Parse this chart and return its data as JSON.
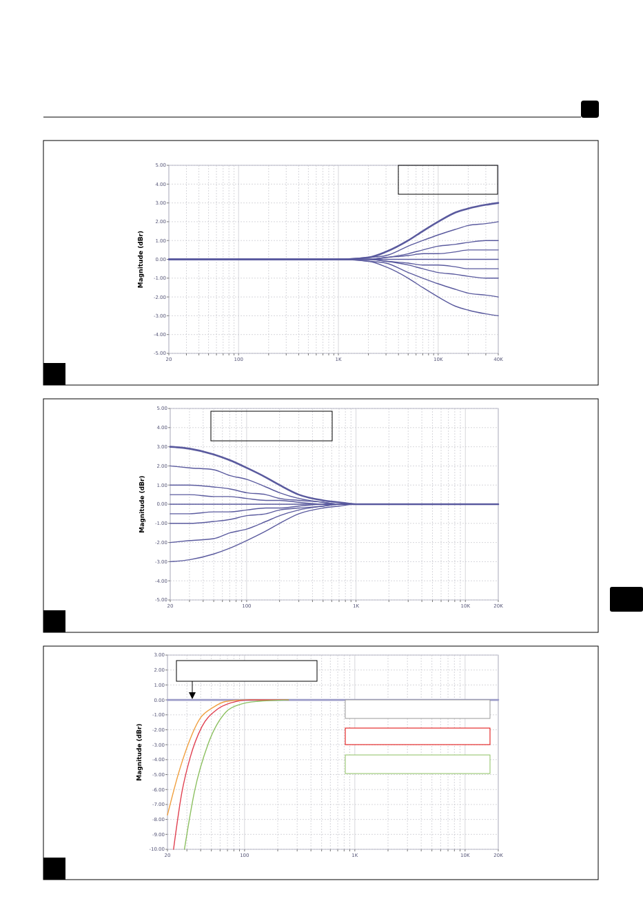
{
  "chart_data": [
    {
      "type": "line",
      "ylabel": "Magnitude (dBr)",
      "log": "x",
      "grid": true,
      "xlim": [
        20,
        40000
      ],
      "ylim": [
        -5,
        5
      ],
      "xticks": [
        {
          "value": 20,
          "label": "20"
        },
        {
          "value": 30,
          "label": null
        },
        {
          "value": 40,
          "label": null
        },
        {
          "value": 50,
          "label": null
        },
        {
          "value": 60,
          "label": null
        },
        {
          "value": 70,
          "label": null
        },
        {
          "value": 80,
          "label": null
        },
        {
          "value": 90,
          "label": null
        },
        {
          "value": 100,
          "label": "100"
        },
        {
          "value": 200,
          "label": null
        },
        {
          "value": 300,
          "label": null
        },
        {
          "value": 400,
          "label": null
        },
        {
          "value": 500,
          "label": null
        },
        {
          "value": 600,
          "label": null
        },
        {
          "value": 700,
          "label": null
        },
        {
          "value": 800,
          "label": null
        },
        {
          "value": 900,
          "label": null
        },
        {
          "value": 1000,
          "label": "1K"
        },
        {
          "value": 2000,
          "label": null
        },
        {
          "value": 3000,
          "label": null
        },
        {
          "value": 4000,
          "label": null
        },
        {
          "value": 5000,
          "label": null
        },
        {
          "value": 6000,
          "label": null
        },
        {
          "value": 7000,
          "label": null
        },
        {
          "value": 8000,
          "label": null
        },
        {
          "value": 9000,
          "label": null
        },
        {
          "value": 10000,
          "label": "10K"
        },
        {
          "value": 20000,
          "label": null
        },
        {
          "value": 30000,
          "label": null
        },
        {
          "value": 40000,
          "label": "40K"
        }
      ],
      "yticks": [
        {
          "value": 5,
          "label": "5.00"
        },
        {
          "value": 4,
          "label": "4.00"
        },
        {
          "value": 3,
          "label": "3.00"
        },
        {
          "value": 2,
          "label": "2.00"
        },
        {
          "value": 1,
          "label": "1.00"
        },
        {
          "value": 0,
          "label": "0.00"
        },
        {
          "value": -1,
          "label": "-1.00"
        },
        {
          "value": -2,
          "label": "-2.00"
        },
        {
          "value": -3,
          "label": "-3.00"
        },
        {
          "value": -4,
          "label": "-4.00"
        },
        {
          "value": -5,
          "label": "-5.00"
        }
      ],
      "x": [
        20,
        500,
        1000,
        2000,
        3000,
        5000,
        7000,
        10000,
        15000,
        20000,
        30000,
        40000
      ],
      "series": [
        {
          "color": "#5a5a9e",
          "values": [
            0,
            0,
            0,
            0.1,
            0.4,
            1.0,
            1.5,
            2.0,
            2.5,
            2.7,
            2.9,
            3
          ]
        },
        {
          "color": "#5a5a9e",
          "values": [
            0,
            0,
            0,
            0.1,
            0.2,
            0.7,
            1.0,
            1.3,
            1.6,
            1.8,
            1.9,
            2
          ]
        },
        {
          "color": "#5a5a9e",
          "values": [
            0,
            0,
            0,
            0,
            0.1,
            0.3,
            0.5,
            0.7,
            0.8,
            0.9,
            1.0,
            1
          ]
        },
        {
          "color": "#5a5a9e",
          "values": [
            0,
            0,
            0,
            0,
            0.1,
            0.2,
            0.3,
            0.3,
            0.4,
            0.5,
            0.5,
            0.5
          ]
        },
        {
          "color": "#5a5a9e",
          "values": [
            0,
            0,
            0,
            0,
            0,
            0,
            0,
            0,
            0,
            0,
            0,
            0
          ]
        },
        {
          "color": "#5a5a9e",
          "values": [
            0,
            0,
            0,
            0,
            -0.1,
            -0.2,
            -0.3,
            -0.3,
            -0.4,
            -0.5,
            -0.5,
            -0.5
          ]
        },
        {
          "color": "#5a5a9e",
          "values": [
            0,
            0,
            0,
            0,
            -0.1,
            -0.3,
            -0.5,
            -0.7,
            -0.8,
            -0.9,
            -1.0,
            -1
          ]
        },
        {
          "color": "#5a5a9e",
          "values": [
            0,
            0,
            0,
            -0.1,
            -0.2,
            -0.7,
            -1.0,
            -1.3,
            -1.6,
            -1.8,
            -1.9,
            -2
          ]
        },
        {
          "color": "#5a5a9e",
          "values": [
            0,
            0,
            0,
            -0.1,
            -0.4,
            -1.0,
            -1.5,
            -2.0,
            -2.5,
            -2.7,
            -2.9,
            -3
          ]
        }
      ]
    },
    {
      "type": "line",
      "ylabel": "Magnitude (dBr)",
      "log": "x",
      "grid": true,
      "xlim": [
        20,
        20000
      ],
      "ylim": [
        -5,
        5
      ],
      "xticks": [
        {
          "value": 20,
          "label": "20"
        },
        {
          "value": 30,
          "label": null
        },
        {
          "value": 40,
          "label": null
        },
        {
          "value": 50,
          "label": null
        },
        {
          "value": 60,
          "label": null
        },
        {
          "value": 70,
          "label": null
        },
        {
          "value": 80,
          "label": null
        },
        {
          "value": 90,
          "label": null
        },
        {
          "value": 100,
          "label": "100"
        },
        {
          "value": 200,
          "label": null
        },
        {
          "value": 300,
          "label": null
        },
        {
          "value": 400,
          "label": null
        },
        {
          "value": 500,
          "label": null
        },
        {
          "value": 600,
          "label": null
        },
        {
          "value": 700,
          "label": null
        },
        {
          "value": 800,
          "label": null
        },
        {
          "value": 900,
          "label": null
        },
        {
          "value": 1000,
          "label": "1K"
        },
        {
          "value": 2000,
          "label": null
        },
        {
          "value": 3000,
          "label": null
        },
        {
          "value": 4000,
          "label": null
        },
        {
          "value": 5000,
          "label": null
        },
        {
          "value": 6000,
          "label": null
        },
        {
          "value": 7000,
          "label": null
        },
        {
          "value": 8000,
          "label": null
        },
        {
          "value": 9000,
          "label": null
        },
        {
          "value": 10000,
          "label": "10K"
        },
        {
          "value": 20000,
          "label": "20K"
        }
      ],
      "yticks": [
        {
          "value": 5,
          "label": "5.00"
        },
        {
          "value": 4,
          "label": "4.00"
        },
        {
          "value": 3,
          "label": "3.00"
        },
        {
          "value": 2,
          "label": "2.00"
        },
        {
          "value": 1,
          "label": "1.00"
        },
        {
          "value": 0,
          "label": "0.00"
        },
        {
          "value": -1,
          "label": "-1.00"
        },
        {
          "value": -2,
          "label": "-2.00"
        },
        {
          "value": -3,
          "label": "-3.00"
        },
        {
          "value": -4,
          "label": "-4.00"
        },
        {
          "value": -5,
          "label": "-5.00"
        }
      ],
      "x": [
        20,
        30,
        50,
        70,
        100,
        150,
        200,
        300,
        500,
        700,
        1000,
        20000
      ],
      "series": [
        {
          "color": "#5a5a9e",
          "values": [
            3,
            2.9,
            2.6,
            2.3,
            1.9,
            1.4,
            1.0,
            0.5,
            0.2,
            0.1,
            0,
            0
          ]
        },
        {
          "color": "#5a5a9e",
          "values": [
            2,
            1.9,
            1.8,
            1.5,
            1.3,
            0.9,
            0.6,
            0.3,
            0.1,
            0,
            0,
            0
          ]
        },
        {
          "color": "#5a5a9e",
          "values": [
            1,
            1.0,
            0.9,
            0.8,
            0.6,
            0.5,
            0.3,
            0.2,
            0.1,
            0,
            0,
            0
          ]
        },
        {
          "color": "#5a5a9e",
          "values": [
            0.5,
            0.5,
            0.4,
            0.4,
            0.3,
            0.2,
            0.2,
            0.1,
            0,
            0,
            0,
            0
          ]
        },
        {
          "color": "#5a5a9e",
          "values": [
            0,
            0,
            0,
            0,
            0,
            0,
            0,
            0,
            0,
            0,
            0,
            0
          ]
        },
        {
          "color": "#5a5a9e",
          "values": [
            -0.5,
            -0.5,
            -0.4,
            -0.4,
            -0.3,
            -0.2,
            -0.2,
            -0.1,
            0,
            0,
            0,
            0
          ]
        },
        {
          "color": "#5a5a9e",
          "values": [
            -1,
            -1.0,
            -0.9,
            -0.8,
            -0.6,
            -0.5,
            -0.3,
            -0.2,
            -0.1,
            0,
            0,
            0
          ]
        },
        {
          "color": "#5a5a9e",
          "values": [
            -2,
            -1.9,
            -1.8,
            -1.5,
            -1.3,
            -0.9,
            -0.6,
            -0.3,
            -0.1,
            0,
            0,
            0
          ]
        },
        {
          "color": "#5a5a9e",
          "values": [
            -3,
            -2.9,
            -2.6,
            -2.3,
            -1.9,
            -1.4,
            -1.0,
            -0.5,
            -0.2,
            -0.1,
            0,
            0
          ]
        }
      ]
    },
    {
      "type": "line",
      "ylabel": "Magnitude (dBr)",
      "log": "x",
      "grid": true,
      "xlim": [
        20,
        20000
      ],
      "ylim": [
        -10,
        3
      ],
      "xticks": [
        {
          "value": 20,
          "label": "20"
        },
        {
          "value": 30,
          "label": null
        },
        {
          "value": 40,
          "label": null
        },
        {
          "value": 50,
          "label": null
        },
        {
          "value": 60,
          "label": null
        },
        {
          "value": 70,
          "label": null
        },
        {
          "value": 80,
          "label": null
        },
        {
          "value": 90,
          "label": null
        },
        {
          "value": 100,
          "label": "100"
        },
        {
          "value": 200,
          "label": null
        },
        {
          "value": 300,
          "label": null
        },
        {
          "value": 400,
          "label": null
        },
        {
          "value": 500,
          "label": null
        },
        {
          "value": 600,
          "label": null
        },
        {
          "value": 700,
          "label": null
        },
        {
          "value": 800,
          "label": null
        },
        {
          "value": 900,
          "label": null
        },
        {
          "value": 1000,
          "label": "1K"
        },
        {
          "value": 2000,
          "label": null
        },
        {
          "value": 3000,
          "label": null
        },
        {
          "value": 4000,
          "label": null
        },
        {
          "value": 5000,
          "label": null
        },
        {
          "value": 6000,
          "label": null
        },
        {
          "value": 7000,
          "label": null
        },
        {
          "value": 8000,
          "label": null
        },
        {
          "value": 9000,
          "label": null
        },
        {
          "value": 10000,
          "label": "10K"
        },
        {
          "value": 20000,
          "label": "20K"
        }
      ],
      "yticks": [
        {
          "value": 3,
          "label": "3.00"
        },
        {
          "value": 2,
          "label": "2.00"
        },
        {
          "value": 1,
          "label": "1.00"
        },
        {
          "value": 0,
          "label": "0.00"
        },
        {
          "value": -1,
          "label": "-1.00"
        },
        {
          "value": -2,
          "label": "-2.00"
        },
        {
          "value": -3,
          "label": "-3.00"
        },
        {
          "value": -4,
          "label": "-4.00"
        },
        {
          "value": -5,
          "label": "-5.00"
        },
        {
          "value": -6,
          "label": "-6.00"
        },
        {
          "value": -7,
          "label": "-7.00"
        },
        {
          "value": -8,
          "label": "-8.00"
        },
        {
          "value": -9,
          "label": "-9.00"
        },
        {
          "value": -10,
          "label": "-10.00"
        }
      ],
      "series": [
        {
          "color": "#9b9bc8",
          "x": [
            20,
            20000
          ],
          "values": [
            0,
            0
          ]
        },
        {
          "color": "#f0a040",
          "x": [
            20,
            25,
            30,
            39,
            52,
            68,
            100,
            250
          ],
          "values": [
            -7.7,
            -5.0,
            -3.2,
            -1.3,
            -0.5,
            -0.1,
            0,
            0
          ]
        },
        {
          "color": "#e04050",
          "x": [
            22.7,
            27,
            32,
            41,
            55,
            75,
            112,
            250
          ],
          "values": [
            -10,
            -6.2,
            -3.9,
            -1.8,
            -0.7,
            -0.2,
            0,
            0
          ]
        },
        {
          "color": "#8cc060",
          "x": [
            28.5,
            35,
            47,
            68,
            91,
            130,
            250
          ],
          "values": [
            -10,
            -6.2,
            -2.9,
            -0.8,
            -0.3,
            -0.1,
            0
          ]
        }
      ]
    }
  ]
}
